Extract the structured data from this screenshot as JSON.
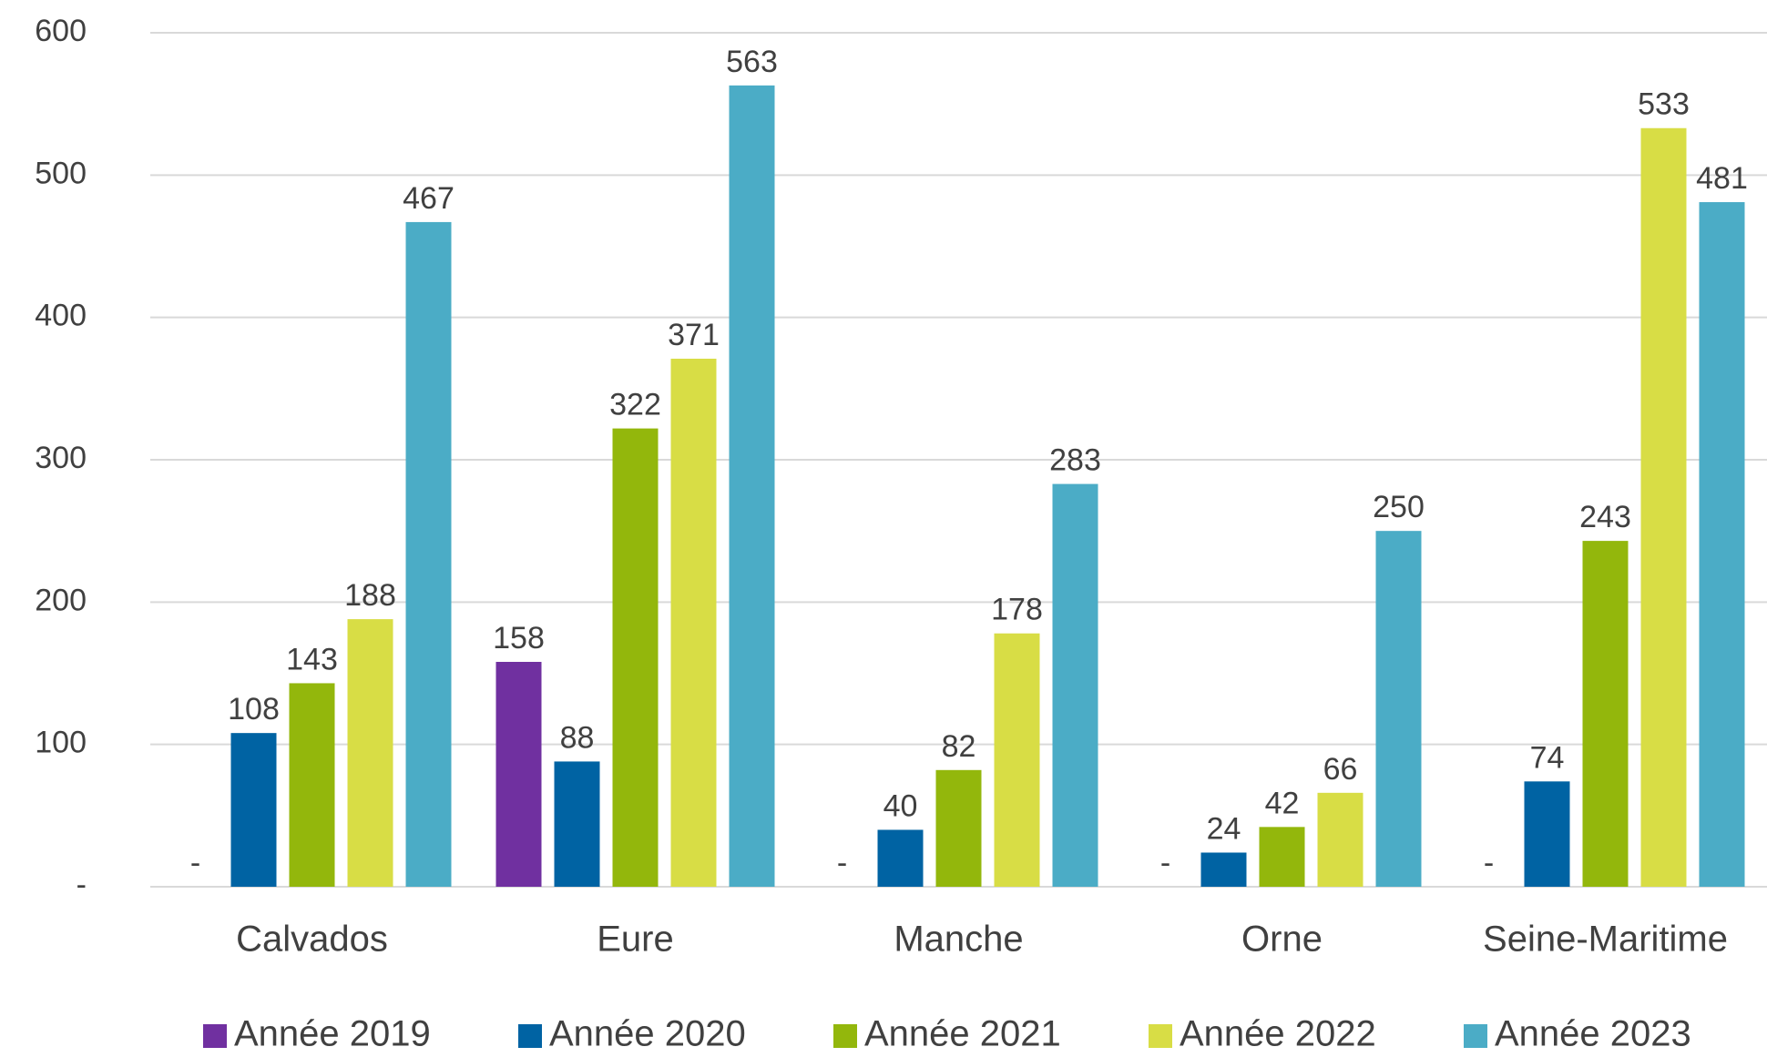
{
  "chart_data": {
    "type": "bar",
    "categories": [
      "Calvados",
      "Eure",
      "Manche",
      "Orne",
      "Seine-Maritime"
    ],
    "series": [
      {
        "name": "Année 2019",
        "color": "#7030a0",
        "values": [
          0,
          158,
          0,
          0,
          0
        ],
        "value_labels": [
          "-",
          "158",
          "-",
          "-",
          "-"
        ]
      },
      {
        "name": "Année 2020",
        "color": "#0063a3",
        "values": [
          108,
          88,
          40,
          24,
          74
        ]
      },
      {
        "name": "Année 2021",
        "color": "#93b70c",
        "values": [
          143,
          322,
          82,
          42,
          243
        ]
      },
      {
        "name": "Année 2022",
        "color": "#d8dd45",
        "values": [
          188,
          371,
          178,
          66,
          533
        ]
      },
      {
        "name": "Année 2023",
        "color": "#4bacc6",
        "values": [
          467,
          563,
          283,
          250,
          481
        ]
      }
    ],
    "ylim": [
      0,
      600
    ],
    "yticks": [
      {
        "value": 0,
        "label": "-"
      },
      100,
      200,
      300,
      400,
      500,
      600
    ],
    "grid": true,
    "legend": "bottom"
  }
}
